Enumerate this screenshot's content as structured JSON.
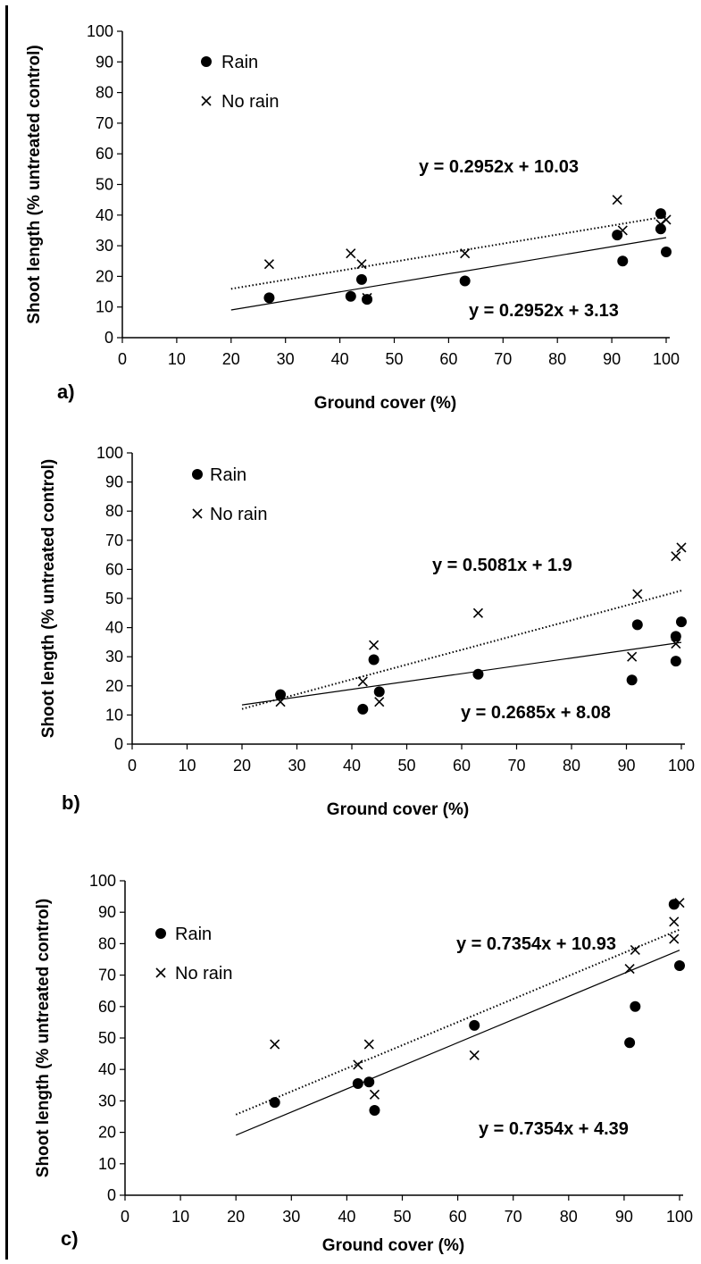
{
  "figure": {
    "colors": {
      "ink": "#000000",
      "background": "#ffffff"
    },
    "legend_labels": {
      "rain": "Rain",
      "no_rain": "No rain"
    }
  },
  "chart_data": [
    {
      "type": "scatter",
      "panel_label": "a)",
      "xlabel": "Ground cover (%)",
      "ylabel": "Shoot length (% untreated control)",
      "xlim": [
        0,
        100
      ],
      "ylim": [
        0,
        100
      ],
      "xticks": [
        0,
        10,
        20,
        30,
        40,
        50,
        60,
        70,
        80,
        90,
        100
      ],
      "yticks": [
        0,
        10,
        20,
        30,
        40,
        50,
        60,
        70,
        80,
        90,
        100
      ],
      "grid": false,
      "legend_placement": "top-left",
      "series": [
        {
          "name": "Rain",
          "marker": "circle",
          "x": [
            27,
            42,
            44,
            45,
            63,
            91,
            92,
            99,
            99,
            100
          ],
          "y": [
            13,
            13.5,
            19,
            12.5,
            18.5,
            33.5,
            25,
            40.5,
            35.5,
            28
          ],
          "trendline": {
            "slope": 0.2952,
            "intercept": 3.13,
            "x_range": [
              20,
              100
            ],
            "style": "solid"
          },
          "equation": "y = 0.2952x + 3.13"
        },
        {
          "name": "No rain",
          "marker": "x",
          "x": [
            27,
            42,
            44,
            45,
            63,
            91,
            92,
            99,
            100
          ],
          "y": [
            24,
            27.5,
            24,
            13,
            27.5,
            45,
            35,
            37,
            38.5
          ],
          "trendline": {
            "slope": 0.2952,
            "intercept": 10.03,
            "x_range": [
              20,
              100
            ],
            "style": "dotted"
          },
          "equation": "y = 0.2952x + 10.03"
        }
      ]
    },
    {
      "type": "scatter",
      "panel_label": "b)",
      "xlabel": "Ground cover (%)",
      "ylabel": "Shoot length (% untreated control)",
      "xlim": [
        0,
        100
      ],
      "ylim": [
        0,
        100
      ],
      "xticks": [
        0,
        10,
        20,
        30,
        40,
        50,
        60,
        70,
        80,
        90,
        100
      ],
      "yticks": [
        0,
        10,
        20,
        30,
        40,
        50,
        60,
        70,
        80,
        90,
        100
      ],
      "grid": false,
      "legend_placement": "top-left",
      "series": [
        {
          "name": "Rain",
          "marker": "circle",
          "x": [
            27,
            42,
            44,
            45,
            63,
            91,
            92,
            99,
            99,
            100
          ],
          "y": [
            17,
            12,
            29,
            18,
            24,
            22,
            41,
            37,
            28.5,
            42
          ],
          "trendline": {
            "slope": 0.2685,
            "intercept": 8.08,
            "x_range": [
              20,
              100
            ],
            "style": "solid"
          },
          "equation": "y = 0.2685x + 8.08"
        },
        {
          "name": "No rain",
          "marker": "x",
          "x": [
            27,
            42,
            44,
            45,
            63,
            91,
            92,
            99,
            99,
            100
          ],
          "y": [
            14.5,
            21.5,
            34,
            14.5,
            45,
            30,
            51.5,
            64.5,
            34.5,
            67.5
          ],
          "trendline": {
            "slope": 0.5081,
            "intercept": 1.9,
            "x_range": [
              20,
              100
            ],
            "style": "dotted"
          },
          "equation": "y = 0.5081x + 1.9"
        }
      ]
    },
    {
      "type": "scatter",
      "panel_label": "c)",
      "xlabel": "Ground cover (%)",
      "ylabel": "Shoot length (% untreated control)",
      "xlim": [
        0,
        100
      ],
      "ylim": [
        0,
        100
      ],
      "xticks": [
        0,
        10,
        20,
        30,
        40,
        50,
        60,
        70,
        80,
        90,
        100
      ],
      "yticks": [
        0,
        10,
        20,
        30,
        40,
        50,
        60,
        70,
        80,
        90,
        100
      ],
      "grid": false,
      "legend_placement": "left",
      "series": [
        {
          "name": "Rain",
          "marker": "circle",
          "x": [
            27,
            42,
            44,
            45,
            63,
            91,
            92,
            99,
            100
          ],
          "y": [
            29.5,
            35.5,
            36,
            27,
            54,
            48.5,
            60,
            92.5,
            73
          ],
          "trendline": {
            "slope": 0.7354,
            "intercept": 4.39,
            "x_range": [
              20,
              100
            ],
            "style": "solid"
          },
          "equation": "y = 0.7354x + 4.39"
        },
        {
          "name": "No rain",
          "marker": "x",
          "x": [
            27,
            42,
            44,
            45,
            63,
            91,
            92,
            99,
            99,
            100
          ],
          "y": [
            48,
            41.5,
            48,
            32,
            44.5,
            72,
            78,
            87,
            81.5,
            93
          ],
          "trendline": {
            "slope": 0.7354,
            "intercept": 10.93,
            "x_range": [
              20,
              100
            ],
            "style": "dotted"
          },
          "equation": "y = 0.7354x + 10.93"
        }
      ]
    }
  ]
}
